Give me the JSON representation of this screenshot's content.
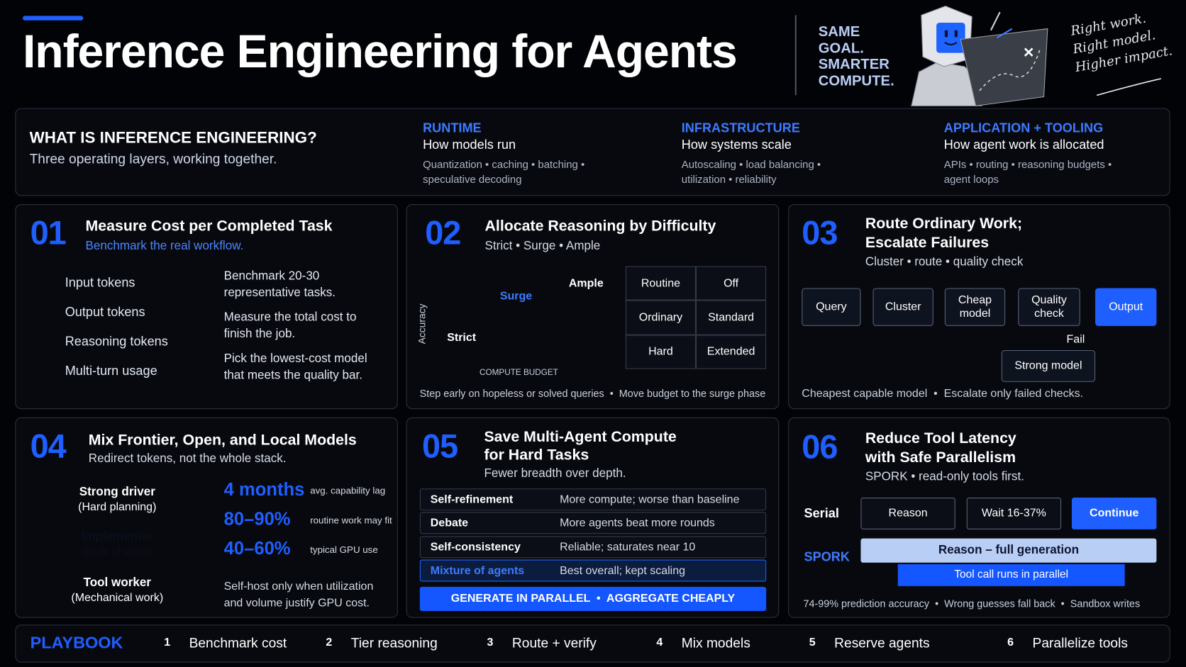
{
  "header": {
    "title": "Inference Engineering for Agents",
    "tagline": [
      "SAME",
      "GOAL.",
      "SMARTER",
      "COMPUTE."
    ],
    "handwritten": [
      "Right work.",
      "Right model.",
      "Higher impact."
    ]
  },
  "overview": {
    "title": "WHAT IS INFERENCE ENGINEERING?",
    "subtitle": "Three operating layers, working together.",
    "layers": [
      {
        "label": "RUNTIME",
        "heading": "How models run",
        "detail": "Quantization • caching • batching • speculative decoding"
      },
      {
        "label": "INFRASTRUCTURE",
        "heading": "How systems scale",
        "detail": "Autoscaling • load balancing • utilization • reliability"
      },
      {
        "label": "APPLICATION + TOOLING",
        "heading": "How agent work is allocated",
        "detail": "APIs • routing • reasoning budgets • agent loops"
      }
    ]
  },
  "section1": {
    "number": "01",
    "title": "Measure Cost per Completed Task",
    "subtitle": "Benchmark the real workflow.",
    "checklist": [
      "Input tokens",
      "Output tokens",
      "Reasoning tokens",
      "Multi-turn usage"
    ],
    "steps": [
      "Benchmark 20-30 representative tasks.",
      "Measure the total cost to finish the job.",
      "Pick the lowest-cost model that meets the quality bar."
    ]
  },
  "section2": {
    "number": "02",
    "title": "Allocate Reasoning by Difficulty",
    "subtitle": "Strict • Surge • Ample",
    "chart": {
      "y_label": "Accuracy",
      "x_label": "COMPUTE BUDGET",
      "phases": [
        "Strict",
        "Surge",
        "Ample"
      ]
    },
    "table": [
      [
        "Routine",
        "Off"
      ],
      [
        "Ordinary",
        "Standard"
      ],
      [
        "Hard",
        "Extended"
      ]
    ],
    "footer": "Step early on hopeless or solved queries  •  Move budget to the surge phase"
  },
  "section3": {
    "number": "03",
    "title": [
      "Route Ordinary Work;",
      "Escalate Failures"
    ],
    "subtitle": "Cluster • route • quality check",
    "flow": [
      "Query",
      "Cluster",
      "Cheap model",
      "Quality check",
      "Output"
    ],
    "fail_label": "Fail",
    "fallback": "Strong model",
    "footer": "Cheapest capable model  •  Escalate only failed checks."
  },
  "section4": {
    "number": "04",
    "title": "Mix Frontier, Open, and Local Models",
    "subtitle": "Redirect tokens, not the whole stack.",
    "tiers": [
      {
        "name": "Strong driver",
        "role": "(Hard planning)"
      },
      {
        "name": "Implementer",
        "role": "(Bulk of work)"
      },
      {
        "name": "Tool worker",
        "role": "(Mechanical work)"
      }
    ],
    "stats": [
      {
        "value": "4 months",
        "label": "avg. capability lag"
      },
      {
        "value": "80–90%",
        "label": "routine work may fit"
      },
      {
        "value": "40–60%",
        "label": "typical GPU use"
      }
    ],
    "note": "Self-host only when utilization and volume justify GPU cost."
  },
  "section5": {
    "number": "05",
    "title": [
      "Save Multi-Agent Compute",
      "for Hard Tasks"
    ],
    "subtitle": "Fewer breadth over depth.",
    "table": [
      [
        "Self-refinement",
        "More compute; worse than baseline"
      ],
      [
        "Debate",
        "More agents beat more rounds"
      ],
      [
        "Self-consistency",
        "Reliable; saturates near 10"
      ],
      [
        "Mixture of agents",
        "Best overall; kept scaling"
      ]
    ],
    "banner": "GENERATE IN PARALLEL  •  AGGREGATE CHEAPLY"
  },
  "section6": {
    "number": "06",
    "title": [
      "Reduce Tool Latency",
      "with Safe Parallelism"
    ],
    "subtitle": "SPORK • read-only tools first.",
    "serial": {
      "label": "Serial",
      "steps": [
        "Reason",
        "Wait 16-37%",
        "Continue"
      ]
    },
    "spork": {
      "label": "SPORK",
      "main": "Reason – full generation",
      "parallel": "Tool call runs in parallel"
    },
    "footer": "74-99% prediction accuracy  •  Wrong guesses fall back  •  Sandbox writes"
  },
  "playbook": {
    "title": "PLAYBOOK",
    "steps": [
      {
        "number": "1",
        "label": "Benchmark cost"
      },
      {
        "number": "2",
        "label": "Tier reasoning"
      },
      {
        "number": "3",
        "label": "Route + verify"
      },
      {
        "number": "4",
        "label": "Mix models"
      },
      {
        "number": "5",
        "label": "Reserve agents"
      },
      {
        "number": "6",
        "label": "Parallelize tools"
      }
    ]
  }
}
